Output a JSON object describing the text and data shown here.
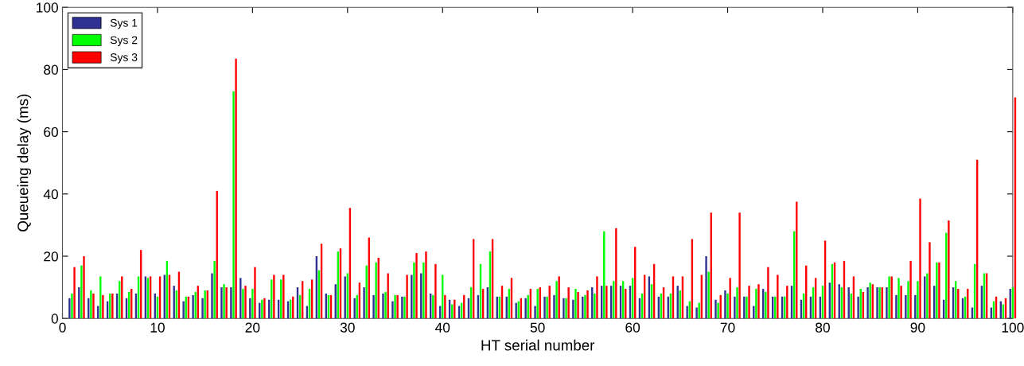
{
  "chart_data": {
    "type": "bar",
    "xlabel": "HT serial number",
    "ylabel": "Queueing delay (ms)",
    "x": [
      1,
      2,
      3,
      4,
      5,
      6,
      7,
      8,
      9,
      10,
      11,
      12,
      13,
      14,
      15,
      16,
      17,
      18,
      19,
      20,
      21,
      22,
      23,
      24,
      25,
      26,
      27,
      28,
      29,
      30,
      31,
      32,
      33,
      34,
      35,
      36,
      37,
      38,
      39,
      40,
      41,
      42,
      43,
      44,
      45,
      46,
      47,
      48,
      49,
      50,
      51,
      52,
      53,
      54,
      55,
      56,
      57,
      58,
      59,
      60,
      61,
      62,
      63,
      64,
      65,
      66,
      67,
      68,
      69,
      70,
      71,
      72,
      73,
      74,
      75,
      76,
      77,
      78,
      79,
      80,
      81,
      82,
      83,
      84,
      85,
      86,
      87,
      88,
      89,
      90,
      91,
      92,
      93,
      94,
      95,
      96,
      97,
      98,
      99,
      100
    ],
    "xlim": [
      0,
      100
    ],
    "xticks": [
      0,
      10,
      20,
      30,
      40,
      50,
      60,
      70,
      80,
      90,
      100
    ],
    "ylim": [
      0,
      100
    ],
    "yticks": [
      0,
      20,
      40,
      60,
      80,
      100
    ],
    "grid": false,
    "legend": "top left",
    "series": [
      {
        "name": "Sys 1",
        "color": "#2e3192",
        "values": [
          6.5,
          10,
          6.5,
          4,
          5.5,
          8,
          6.5,
          8,
          13.5,
          8,
          14,
          10.5,
          5.5,
          7.5,
          6.5,
          14.5,
          10,
          10,
          13,
          6.5,
          5,
          6,
          6,
          5.5,
          10,
          4,
          20,
          8,
          11,
          13.5,
          6.5,
          10,
          7.5,
          8,
          5.5,
          7,
          14,
          14.5,
          8,
          4,
          6,
          4,
          6.5,
          7.5,
          10,
          7,
          7,
          5,
          6.5,
          4,
          7,
          7.5,
          6.5,
          6,
          7,
          10,
          10.5,
          10.5,
          10.5,
          10.5,
          6.5,
          13.5,
          7,
          7,
          10.5,
          4,
          3.5,
          20,
          6,
          9,
          7,
          7,
          4,
          9.5,
          7,
          7,
          10.5,
          6,
          7,
          7,
          11.5,
          11,
          10,
          7,
          10,
          10,
          10,
          7.5,
          7.5,
          7.5,
          13.5,
          10.5,
          6,
          10,
          6.5,
          3.5,
          10.5,
          3.5,
          5.5,
          9.5
        ]
      },
      {
        "name": "Sys 2",
        "color": "#00ff00",
        "values": [
          8,
          17,
          9,
          13.5,
          8,
          12,
          8.5,
          13.5,
          13,
          7,
          18.5,
          9,
          7,
          8.5,
          9,
          18.5,
          11,
          73,
          9.5,
          9.5,
          6,
          12.5,
          12.5,
          6,
          7.5,
          9.5,
          15.5,
          7.5,
          21.5,
          14.5,
          7.5,
          17,
          18,
          8.5,
          7.5,
          7,
          18,
          18,
          7.5,
          14,
          4.5,
          5,
          10,
          17.5,
          21.5,
          7,
          9.5,
          5.5,
          7.5,
          9.5,
          7,
          12,
          6.5,
          9.5,
          7.5,
          8,
          28,
          12,
          12,
          13,
          8,
          11,
          8,
          8,
          9,
          5.5,
          5,
          15,
          5,
          8,
          10,
          7,
          9.5,
          8.5,
          7,
          7,
          28,
          8,
          10,
          10.5,
          17.5,
          10,
          8,
          9.5,
          11.5,
          10,
          13.5,
          13,
          12,
          12,
          14.5,
          18,
          27.5,
          12,
          7,
          17.5,
          14.5,
          5.5,
          4.5,
          10
        ]
      },
      {
        "name": "Sys 3",
        "color": "#ff0000",
        "values": [
          16.5,
          20,
          8,
          7.5,
          8,
          13.5,
          9.5,
          22,
          13.5,
          13.5,
          14,
          15,
          7,
          10.5,
          9,
          41,
          10,
          83.5,
          10.5,
          16.5,
          6.5,
          14,
          14,
          7,
          12,
          12.5,
          24,
          7.5,
          22.5,
          35.5,
          11.5,
          26,
          19.5,
          14.5,
          7.5,
          14,
          21,
          21.5,
          17.5,
          7.5,
          6,
          7.5,
          25.5,
          9.5,
          25.5,
          10.5,
          13,
          6.5,
          9.5,
          10,
          10.5,
          13.5,
          10,
          8.5,
          9,
          13.5,
          10.5,
          29,
          9.5,
          23,
          14,
          17.5,
          10,
          13.5,
          13.5,
          25.5,
          14,
          34,
          7.5,
          13,
          34,
          10.5,
          11,
          16.5,
          14,
          10.5,
          37.5,
          17,
          13,
          25,
          18,
          18.5,
          13.5,
          8.5,
          11,
          10,
          13.5,
          10.5,
          18.5,
          38.5,
          24.5,
          18,
          31.5,
          9.5,
          9.5,
          51,
          14.5,
          7,
          6.5,
          71
        ]
      }
    ]
  }
}
